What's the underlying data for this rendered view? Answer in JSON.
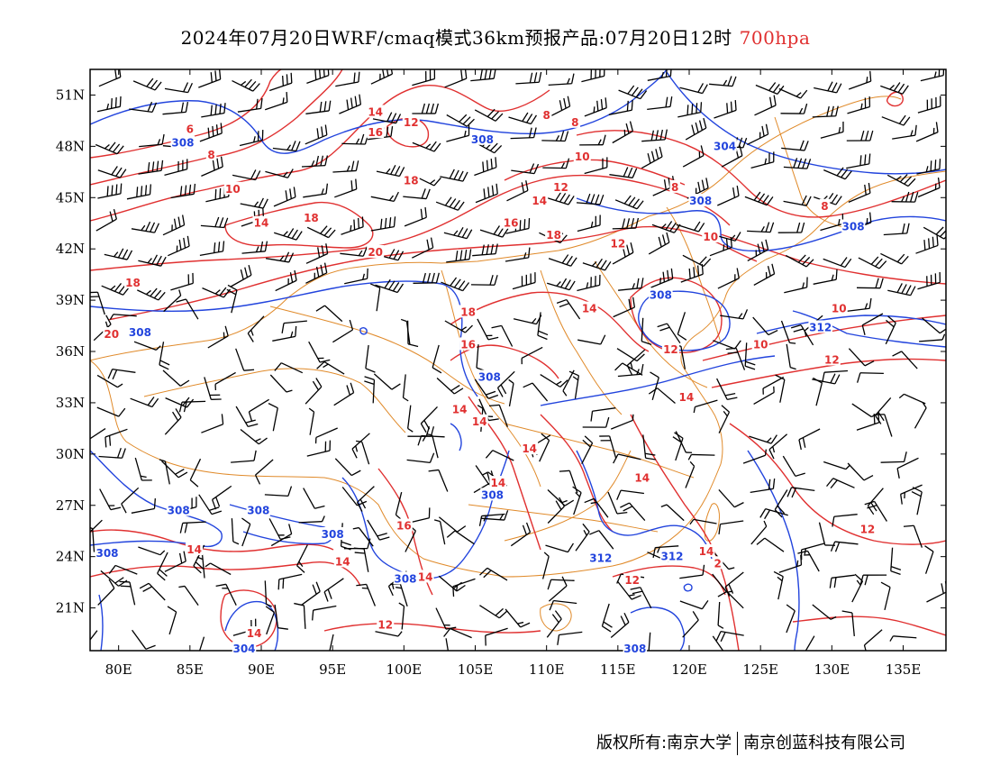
{
  "title": {
    "main": "2024年07月20日WRF/cmaq模式36km预报产品:07月20日12时",
    "level": "700hpa",
    "level_color": "#e03030"
  },
  "map": {
    "lon_range": [
      78,
      138
    ],
    "lat_range": [
      18.5,
      52.5
    ],
    "lon_ticks": [
      {
        "value": 80,
        "label": "80E"
      },
      {
        "value": 85,
        "label": "85E"
      },
      {
        "value": 90,
        "label": "90E"
      },
      {
        "value": 95,
        "label": "95E"
      },
      {
        "value": 100,
        "label": "100E"
      },
      {
        "value": 105,
        "label": "105E"
      },
      {
        "value": 110,
        "label": "110E"
      },
      {
        "value": 115,
        "label": "115E"
      },
      {
        "value": 120,
        "label": "120E"
      },
      {
        "value": 125,
        "label": "125E"
      },
      {
        "value": 130,
        "label": "130E"
      },
      {
        "value": 135,
        "label": "135E"
      }
    ],
    "lat_ticks": [
      {
        "value": 51,
        "label": "51N"
      },
      {
        "value": 48,
        "label": "48N"
      },
      {
        "value": 45,
        "label": "45N"
      },
      {
        "value": 42,
        "label": "42N"
      },
      {
        "value": 39,
        "label": "39N"
      },
      {
        "value": 36,
        "label": "36N"
      },
      {
        "value": 33,
        "label": "33N"
      },
      {
        "value": 30,
        "label": "30N"
      },
      {
        "value": 27,
        "label": "27N"
      },
      {
        "value": 24,
        "label": "24N"
      },
      {
        "value": 21,
        "label": "21N"
      }
    ],
    "colors": {
      "temperature_contour": "#e03030",
      "height_contour": "#2244dd",
      "boundary": "#e08a2a",
      "wind_barb": "#000000"
    },
    "temperature_labels": [
      {
        "text": "6",
        "lon": 85,
        "lat": 49
      },
      {
        "text": "8",
        "lon": 86.5,
        "lat": 47.5
      },
      {
        "text": "10",
        "lon": 88,
        "lat": 45.5
      },
      {
        "text": "14",
        "lon": 90,
        "lat": 43.5
      },
      {
        "text": "18",
        "lon": 93.5,
        "lat": 43.8
      },
      {
        "text": "18",
        "lon": 81,
        "lat": 40
      },
      {
        "text": "20",
        "lon": 79.5,
        "lat": 37
      },
      {
        "text": "20",
        "lon": 98,
        "lat": 41.8
      },
      {
        "text": "14",
        "lon": 98,
        "lat": 50
      },
      {
        "text": "16",
        "lon": 98,
        "lat": 48.8
      },
      {
        "text": "12",
        "lon": 100.5,
        "lat": 49.4
      },
      {
        "text": "18",
        "lon": 100.5,
        "lat": 46
      },
      {
        "text": "8",
        "lon": 110,
        "lat": 49.8
      },
      {
        "text": "8",
        "lon": 112,
        "lat": 49.4
      },
      {
        "text": "10",
        "lon": 112.5,
        "lat": 47.4
      },
      {
        "text": "12",
        "lon": 111,
        "lat": 45.6
      },
      {
        "text": "14",
        "lon": 109.5,
        "lat": 44.8
      },
      {
        "text": "16",
        "lon": 107.5,
        "lat": 43.5
      },
      {
        "text": "18",
        "lon": 110.5,
        "lat": 42.8
      },
      {
        "text": "12",
        "lon": 115,
        "lat": 42.3
      },
      {
        "text": "8",
        "lon": 119,
        "lat": 45.6
      },
      {
        "text": "10",
        "lon": 121.5,
        "lat": 42.7
      },
      {
        "text": "8",
        "lon": 129.5,
        "lat": 44.5
      },
      {
        "text": "18",
        "lon": 104.5,
        "lat": 38.3
      },
      {
        "text": "16",
        "lon": 104.5,
        "lat": 36.4
      },
      {
        "text": "14",
        "lon": 113,
        "lat": 38.5
      },
      {
        "text": "12",
        "lon": 118.7,
        "lat": 36.1
      },
      {
        "text": "10",
        "lon": 125,
        "lat": 36.4
      },
      {
        "text": "10",
        "lon": 130.5,
        "lat": 38.5
      },
      {
        "text": "12",
        "lon": 130,
        "lat": 35.5
      },
      {
        "text": "14",
        "lon": 103.9,
        "lat": 32.6
      },
      {
        "text": "14",
        "lon": 105.3,
        "lat": 31.9
      },
      {
        "text": "14",
        "lon": 108.8,
        "lat": 30.3
      },
      {
        "text": "14",
        "lon": 106.6,
        "lat": 28.3
      },
      {
        "text": "14",
        "lon": 119.8,
        "lat": 33.3
      },
      {
        "text": "14",
        "lon": 116.7,
        "lat": 28.6
      },
      {
        "text": "16",
        "lon": 100,
        "lat": 25.8
      },
      {
        "text": "14",
        "lon": 95.7,
        "lat": 23.7
      },
      {
        "text": "14",
        "lon": 85.3,
        "lat": 24.4
      },
      {
        "text": "14",
        "lon": 101.5,
        "lat": 22.8
      },
      {
        "text": "14",
        "lon": 89.5,
        "lat": 19.5
      },
      {
        "text": "12",
        "lon": 98.7,
        "lat": 20
      },
      {
        "text": "12",
        "lon": 116,
        "lat": 22.6
      },
      {
        "text": "14",
        "lon": 121.2,
        "lat": 24.3
      },
      {
        "text": "2",
        "lon": 122,
        "lat": 23.6
      },
      {
        "text": "12",
        "lon": 132.5,
        "lat": 25.6
      }
    ],
    "height_labels": [
      {
        "text": "308",
        "lon": 84.5,
        "lat": 48.2
      },
      {
        "text": "308",
        "lon": 105.5,
        "lat": 48.4
      },
      {
        "text": "304",
        "lon": 122.5,
        "lat": 48
      },
      {
        "text": "308",
        "lon": 120.8,
        "lat": 44.8
      },
      {
        "text": "308",
        "lon": 131.5,
        "lat": 43.3
      },
      {
        "text": "308",
        "lon": 118,
        "lat": 39.3
      },
      {
        "text": "312",
        "lon": 129.2,
        "lat": 37.4
      },
      {
        "text": "308",
        "lon": 106,
        "lat": 34.5
      },
      {
        "text": "308",
        "lon": 81.5,
        "lat": 37.1
      },
      {
        "text": "308",
        "lon": 106.2,
        "lat": 27.6
      },
      {
        "text": "308",
        "lon": 84.2,
        "lat": 26.7
      },
      {
        "text": "308",
        "lon": 89.8,
        "lat": 26.7
      },
      {
        "text": "308",
        "lon": 95,
        "lat": 25.3
      },
      {
        "text": "308",
        "lon": 79.2,
        "lat": 24.2
      },
      {
        "text": "308",
        "lon": 100.1,
        "lat": 22.7
      },
      {
        "text": "312",
        "lon": 113.8,
        "lat": 23.9
      },
      {
        "text": "312",
        "lon": 118.8,
        "lat": 24
      },
      {
        "text": "304",
        "lon": 88.8,
        "lat": 18.6
      },
      {
        "text": "308",
        "lon": 116.2,
        "lat": 18.6
      }
    ]
  },
  "footer": {
    "left": "版权所有:南京大学",
    "right": "南京创蓝科技有限公司"
  }
}
